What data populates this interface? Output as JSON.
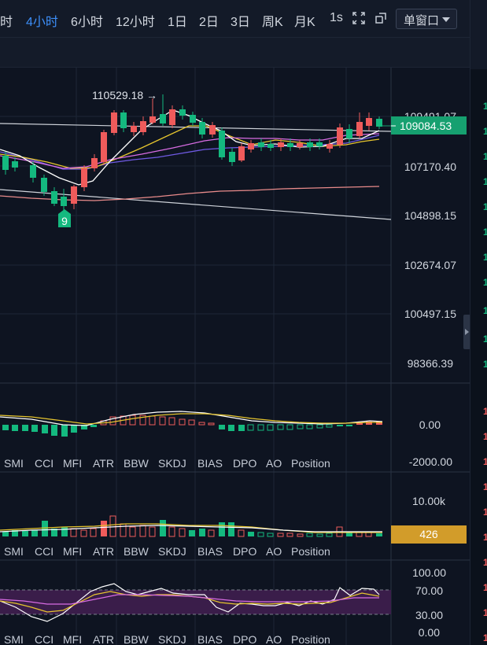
{
  "toolbar": {
    "timeframes": [
      "时",
      "4小时",
      "6小时",
      "12小时",
      "1日",
      "2日",
      "3日",
      "周K",
      "月K",
      "1s"
    ],
    "active_timeframe": "4小时",
    "icons": [
      "fullscreen-icon",
      "popout-icon"
    ],
    "window_select": "单窗口"
  },
  "main_chart": {
    "price_axis": [
      "109491.07",
      "107170.40",
      "104898.15",
      "102674.07",
      "100497.15",
      "98366.39"
    ],
    "current_price": "109084.53",
    "high_label": "110529.18 →",
    "td_label": "9"
  },
  "macd_panel": {
    "axis": [
      "0.00",
      "-2000.00"
    ]
  },
  "volume_panel": {
    "axis": [
      "10.00k"
    ],
    "current_volume": "426"
  },
  "rsi_panel": {
    "axis": [
      "100.00",
      "70.00",
      "30.00",
      "0.00"
    ]
  },
  "indicator_tabs": [
    "SMI",
    "CCI",
    "MFI",
    "ATR",
    "BBW",
    "SKDJ",
    "BIAS",
    "DPO",
    "AO",
    "Position"
  ],
  "colors": {
    "up": "#ef5b5b",
    "down": "#14b97f",
    "accent": "#3d8ef7",
    "current_price_bg": "#16a070",
    "volume_badge_bg": "#d29c2a"
  }
}
